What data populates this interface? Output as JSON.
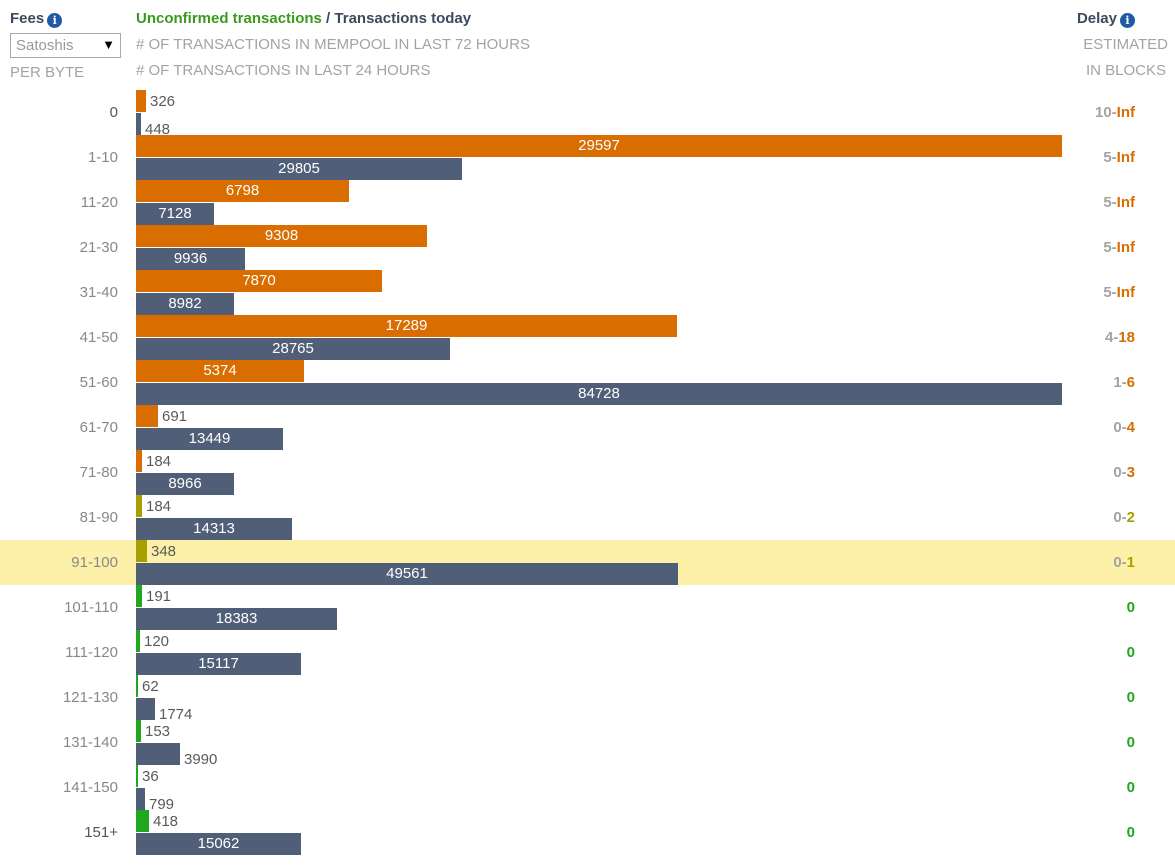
{
  "header": {
    "fees_label": "Fees",
    "unit_select": "Satoshis",
    "per_byte": "PER BYTE",
    "title_green": "Unconfirmed transactions",
    "title_sep": " / ",
    "title_dark": "Transactions today",
    "sub1": "# OF TRANSACTIONS IN MEMPOOL IN LAST 72 HOURS",
    "sub2": "# OF TRANSACTIONS IN LAST 24 HOURS",
    "delay_label": "Delay",
    "delay_sub1": "ESTIMATED",
    "delay_sub2": "IN BLOCKS"
  },
  "colors": {
    "title_green": "#3a9a1c",
    "title_dark": "#3d4a5e",
    "today_bar": "#515e78",
    "highlight": "#fdf0a8"
  },
  "chart_data": {
    "type": "bar",
    "orientation": "horizontal",
    "categories": [
      "0",
      "1-10",
      "11-20",
      "21-30",
      "31-40",
      "41-50",
      "51-60",
      "61-70",
      "71-80",
      "81-90",
      "91-100",
      "101-110",
      "111-120",
      "121-130",
      "131-140",
      "141-150",
      "151+"
    ],
    "series": [
      {
        "name": "Unconfirmed transactions",
        "values": [
          326,
          29597,
          6798,
          9308,
          7870,
          17289,
          5374,
          691,
          184,
          184,
          348,
          191,
          120,
          62,
          153,
          36,
          418
        ],
        "colors": [
          "#d96d00",
          "#d96d00",
          "#d96d00",
          "#d96d00",
          "#d96d00",
          "#d96d00",
          "#d96d00",
          "#d96d00",
          "#d96d00",
          "#a8a000",
          "#a8a000",
          "#1fa81f",
          "#1fa81f",
          "#1fa81f",
          "#1fa81f",
          "#1fa81f",
          "#1fa81f"
        ]
      },
      {
        "name": "Transactions today",
        "values": [
          448,
          29805,
          7128,
          9936,
          8982,
          28765,
          84728,
          13449,
          8966,
          14313,
          49561,
          18383,
          15117,
          1774,
          3990,
          799,
          15062
        ]
      }
    ],
    "delays": [
      {
        "a": "10",
        "b": "Inf"
      },
      {
        "a": "5",
        "b": "Inf"
      },
      {
        "a": "5",
        "b": "Inf"
      },
      {
        "a": "5",
        "b": "Inf"
      },
      {
        "a": "5",
        "b": "Inf"
      },
      {
        "a": "4",
        "b": "18"
      },
      {
        "a": "1",
        "b": "6"
      },
      {
        "a": "0",
        "b": "4"
      },
      {
        "a": "0",
        "b": "3"
      },
      {
        "a": "0",
        "b": "2"
      },
      {
        "a": "0",
        "b": "1"
      },
      {
        "a": "0",
        "b": ""
      },
      {
        "a": "0",
        "b": ""
      },
      {
        "a": "0",
        "b": ""
      },
      {
        "a": "0",
        "b": ""
      },
      {
        "a": "0",
        "b": ""
      },
      {
        "a": "0",
        "b": ""
      }
    ],
    "delay_colors": [
      "#d96d00",
      "#d96d00",
      "#d96d00",
      "#d96d00",
      "#d96d00",
      "#d96d00",
      "#d96d00",
      "#d96d00",
      "#d96d00",
      "#a8a000",
      "#a8a000",
      "#1fa81f",
      "#1fa81f",
      "#1fa81f",
      "#1fa81f",
      "#1fa81f",
      "#1fa81f"
    ],
    "range_colors": [
      "#555",
      "#888",
      "#888",
      "#888",
      "#888",
      "#888",
      "#888",
      "#888",
      "#888",
      "#888",
      "#888",
      "#888",
      "#888",
      "#888",
      "#888",
      "#888",
      "#555"
    ],
    "highlighted_row": "91-100",
    "scale": {
      "top_max": 29597,
      "bottom_max": 84728
    }
  }
}
